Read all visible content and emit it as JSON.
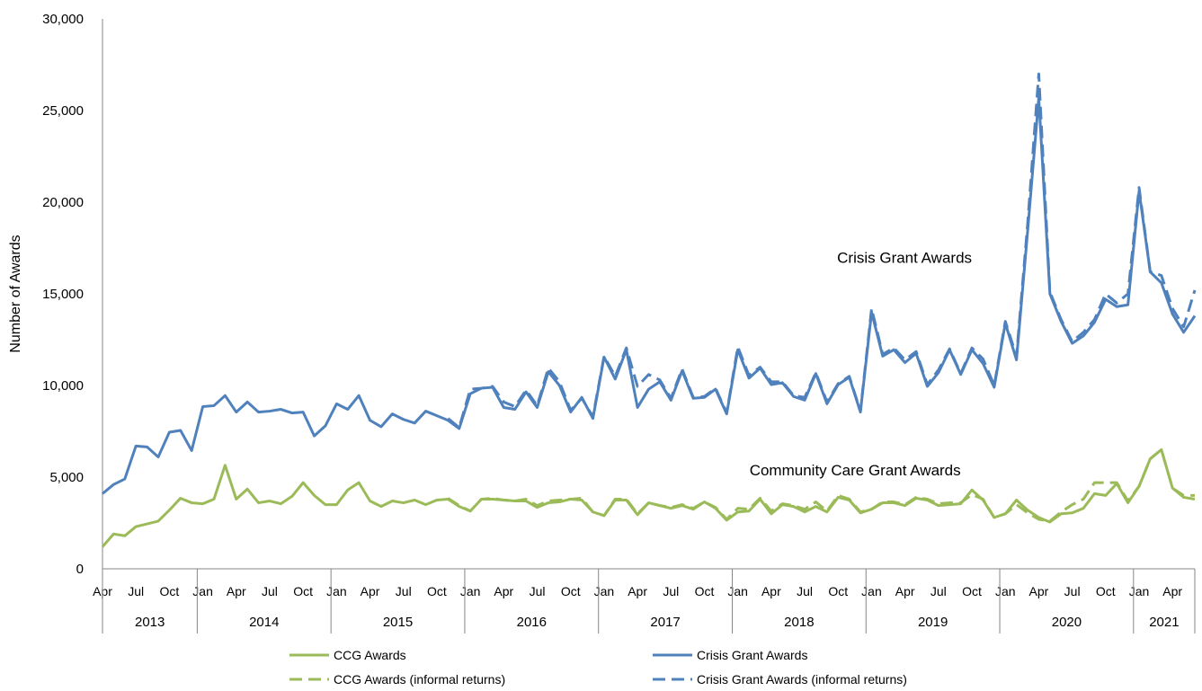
{
  "chart_data": {
    "type": "line",
    "title": "",
    "ylabel": "Number of Awards",
    "xlabel": "",
    "ylim": [
      0,
      30000
    ],
    "y_ticks": [
      "0",
      "5,000",
      "10,000",
      "15,000",
      "20,000",
      "25,000",
      "30,000"
    ],
    "y_tick_values": [
      0,
      5000,
      10000,
      15000,
      20000,
      25000,
      30000
    ],
    "month_ticks": [
      {
        "label": "Apr",
        "index": 0
      },
      {
        "label": "Jul",
        "index": 3
      },
      {
        "label": "Oct",
        "index": 6
      },
      {
        "label": "Jan",
        "index": 9
      },
      {
        "label": "Apr",
        "index": 12
      },
      {
        "label": "Jul",
        "index": 15
      },
      {
        "label": "Oct",
        "index": 18
      },
      {
        "label": "Jan",
        "index": 21
      },
      {
        "label": "Apr",
        "index": 24
      },
      {
        "label": "Jul",
        "index": 27
      },
      {
        "label": "Oct",
        "index": 30
      },
      {
        "label": "Jan",
        "index": 33
      },
      {
        "label": "Apr",
        "index": 36
      },
      {
        "label": "Jul",
        "index": 39
      },
      {
        "label": "Oct",
        "index": 42
      },
      {
        "label": "Jan",
        "index": 45
      },
      {
        "label": "Apr",
        "index": 48
      },
      {
        "label": "Jul",
        "index": 51
      },
      {
        "label": "Oct",
        "index": 54
      },
      {
        "label": "Jan",
        "index": 57
      },
      {
        "label": "Apr",
        "index": 60
      },
      {
        "label": "Jul",
        "index": 63
      },
      {
        "label": "Oct",
        "index": 66
      },
      {
        "label": "Jan",
        "index": 69
      },
      {
        "label": "Apr",
        "index": 72
      },
      {
        "label": "Jul",
        "index": 75
      },
      {
        "label": "Oct",
        "index": 78
      },
      {
        "label": "Jan",
        "index": 81
      },
      {
        "label": "Apr",
        "index": 84
      },
      {
        "label": "Jul",
        "index": 87
      },
      {
        "label": "Oct",
        "index": 90
      },
      {
        "label": "Jan",
        "index": 93
      },
      {
        "label": "Apr",
        "index": 96
      }
    ],
    "years": [
      {
        "label": "2013",
        "start": 0,
        "end": 9
      },
      {
        "label": "2014",
        "start": 9,
        "end": 21
      },
      {
        "label": "2015",
        "start": 21,
        "end": 33
      },
      {
        "label": "2016",
        "start": 33,
        "end": 45
      },
      {
        "label": "2017",
        "start": 45,
        "end": 57
      },
      {
        "label": "2018",
        "start": 57,
        "end": 69
      },
      {
        "label": "2019",
        "start": 69,
        "end": 81
      },
      {
        "label": "2020",
        "start": 81,
        "end": 93
      },
      {
        "label": "2021",
        "start": 93,
        "end": 99
      }
    ],
    "series": [
      {
        "name": "CCG Awards",
        "color": "#9bbb59",
        "style": "solid",
        "values": [
          1200,
          1900,
          1800,
          2300,
          2450,
          2600,
          3200,
          3850,
          3600,
          3550,
          3800,
          5650,
          3800,
          4350,
          3600,
          3700,
          3550,
          3950,
          4700,
          4000,
          3500,
          3500,
          4300,
          4700,
          3700,
          3400,
          3700,
          3600,
          3750,
          3500,
          3750,
          3800,
          3400,
          3150,
          3800,
          3800,
          3750,
          3700,
          3700,
          3350,
          3600,
          3650,
          3800,
          3750,
          3100,
          2900,
          3750,
          3750,
          2950,
          3600,
          3450,
          3300,
          3450,
          3250,
          3650,
          3300,
          2650,
          3100,
          3150,
          3800,
          3000,
          3500,
          3400,
          3100,
          3400,
          3100,
          3900,
          3750,
          3050,
          3250,
          3600,
          3600,
          3450,
          3850,
          3750,
          3450,
          3500,
          3550,
          4300,
          3750,
          2800,
          3000,
          3750,
          3200,
          2800,
          2550,
          3000,
          3050,
          3300,
          4100,
          4000,
          4650,
          3600,
          4500,
          6000,
          6500,
          4400,
          3900,
          3800
        ]
      },
      {
        "name": "Crisis Grant Awards",
        "color": "#4f81bd",
        "style": "solid",
        "values": [
          4100,
          4600,
          4900,
          6700,
          6650,
          6100,
          7450,
          7550,
          6450,
          8850,
          8900,
          9450,
          8550,
          9100,
          8550,
          8600,
          8700,
          8500,
          8550,
          7250,
          7800,
          9000,
          8700,
          9450,
          8100,
          7750,
          8450,
          8150,
          7950,
          8600,
          8350,
          8100,
          7650,
          9550,
          9850,
          9900,
          8800,
          8700,
          9650,
          8800,
          10750,
          10000,
          8550,
          9350,
          8200,
          11550,
          10350,
          11950,
          8800,
          9800,
          10200,
          9200,
          10800,
          9300,
          9350,
          9800,
          8450,
          11950,
          10400,
          10950,
          10050,
          10150,
          9400,
          9200,
          10650,
          9000,
          10050,
          10450,
          8550,
          14000,
          11600,
          11950,
          11250,
          11750,
          9950,
          10700,
          11950,
          10600,
          11950,
          11200,
          9900,
          13400,
          11400,
          18400,
          25700,
          15000,
          13500,
          12300,
          12700,
          13450,
          14700,
          14300,
          14400,
          20600,
          16200,
          15600,
          13900,
          12900,
          13800
        ]
      },
      {
        "name": "CCG Awards (informal returns)",
        "color": "#9bbb59",
        "style": "dashed",
        "values": [
          null,
          null,
          null,
          null,
          null,
          null,
          null,
          null,
          null,
          null,
          null,
          null,
          null,
          null,
          null,
          null,
          null,
          null,
          null,
          null,
          null,
          null,
          null,
          null,
          null,
          null,
          null,
          null,
          null,
          null,
          null,
          3850,
          3450,
          3150,
          3800,
          3850,
          3750,
          3700,
          3800,
          3450,
          3700,
          3750,
          3800,
          3850,
          3100,
          2900,
          3800,
          3800,
          3000,
          3600,
          3450,
          3350,
          3500,
          3300,
          3650,
          3350,
          2700,
          3300,
          3250,
          3850,
          3150,
          3550,
          3450,
          3250,
          3650,
          3150,
          4000,
          3800,
          3100,
          3250,
          3650,
          3650,
          3500,
          3900,
          3800,
          3550,
          3600,
          3600,
          4050,
          3800,
          2800,
          3000,
          3500,
          3050,
          2700,
          2600,
          3100,
          3500,
          3800,
          4700,
          4700,
          4700,
          3700,
          4500,
          6000,
          6500,
          4400,
          4000,
          4000
        ]
      },
      {
        "name": "Crisis Grant Awards (informal returns)",
        "color": "#4f81bd",
        "style": "dashed",
        "values": [
          null,
          null,
          null,
          null,
          null,
          null,
          null,
          null,
          null,
          null,
          null,
          null,
          null,
          null,
          null,
          null,
          null,
          null,
          null,
          null,
          null,
          null,
          null,
          null,
          null,
          null,
          null,
          null,
          null,
          null,
          null,
          8200,
          7700,
          9800,
          9850,
          9950,
          9100,
          8850,
          9750,
          8900,
          10950,
          10200,
          8650,
          9300,
          8300,
          11600,
          10500,
          12050,
          9950,
          10600,
          10300,
          9300,
          10900,
          9350,
          9400,
          9850,
          8500,
          12100,
          10550,
          11000,
          10200,
          10200,
          9450,
          9350,
          10700,
          9100,
          10100,
          10500,
          8600,
          14200,
          11700,
          12050,
          11400,
          11850,
          10050,
          10850,
          12000,
          10650,
          12050,
          11450,
          10000,
          13500,
          11600,
          18800,
          27000,
          15100,
          13600,
          12400,
          12900,
          13600,
          15000,
          14500,
          15000,
          20800,
          16200,
          16000,
          14200,
          13200,
          15200
        ]
      }
    ],
    "annotations": [
      {
        "text": "Crisis Grant Awards",
        "index": 78,
        "value": 16700
      },
      {
        "text": "Community Care Grant Awards",
        "index": 77,
        "value": 5100
      }
    ],
    "legend_position": "bottom",
    "grid": false
  }
}
